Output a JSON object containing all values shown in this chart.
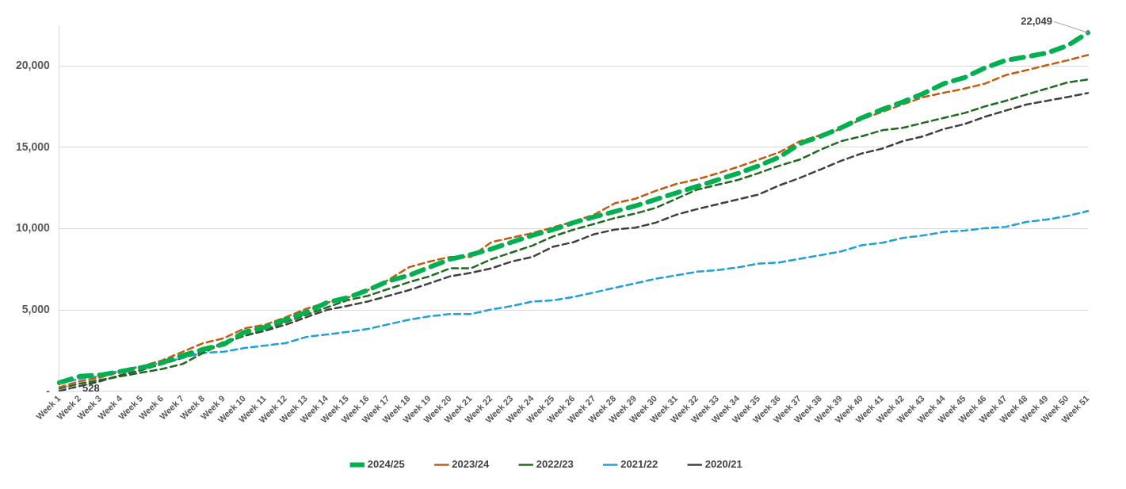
{
  "chart_data": {
    "type": "line",
    "categories": [
      "Week 1",
      "Week 2",
      "Week 3",
      "Week 4",
      "Week 5",
      "Week 6",
      "Week 7",
      "Week 8",
      "Week 9",
      "Week 10",
      "Week 11",
      "Week 12",
      "Week 13",
      "Week 14",
      "Week 15",
      "Week 16",
      "Week 17",
      "Week 18",
      "Week 19",
      "Week 20",
      "Week 21",
      "Week 22",
      "Week 23",
      "Week 24",
      "Week 25",
      "Week 26",
      "Week 27",
      "Week 28",
      "Week 29",
      "Week 30",
      "Week 31",
      "Week 32",
      "Week 33",
      "Week 34",
      "Week 35",
      "Week 36",
      "Week 37",
      "Week 38",
      "Week 39",
      "Week 40",
      "Week 41",
      "Week 42",
      "Week 43",
      "Week 44",
      "Week 45",
      "Week 46",
      "Week 47",
      "Week 48",
      "Week 49",
      "Week 50",
      "Week 51"
    ],
    "series": [
      {
        "name": "2024/25",
        "color": "#00b050",
        "values": [
          528,
          920,
          1000,
          1220,
          1450,
          1750,
          2200,
          2580,
          2890,
          3640,
          3940,
          4400,
          4860,
          5450,
          5750,
          6220,
          6780,
          7130,
          7630,
          8120,
          8400,
          8750,
          9170,
          9590,
          9940,
          10370,
          10720,
          11050,
          11400,
          11800,
          12200,
          12600,
          13000,
          13400,
          13870,
          14400,
          15230,
          15680,
          16200,
          16810,
          17330,
          17790,
          18310,
          18920,
          19290,
          19890,
          20350,
          20570,
          20800,
          21250,
          22049
        ]
      },
      {
        "name": "2023/24",
        "color": "#c55a11",
        "values": [
          240,
          620,
          850,
          1220,
          1530,
          1900,
          2430,
          2960,
          3260,
          3870,
          4090,
          4550,
          5070,
          5450,
          5750,
          6220,
          6850,
          7630,
          7980,
          8260,
          8260,
          9170,
          9450,
          9730,
          10080,
          10440,
          10860,
          11560,
          11840,
          12330,
          12750,
          13030,
          13400,
          13800,
          14250,
          14700,
          15380,
          15750,
          16130,
          16730,
          17180,
          17640,
          18090,
          18360,
          18610,
          18920,
          19440,
          19740,
          20050,
          20350,
          20680
        ]
      },
      {
        "name": "2022/23",
        "color": "#1e6b1e",
        "values": [
          170,
          470,
          700,
          920,
          1150,
          1370,
          1680,
          2360,
          2960,
          3410,
          3790,
          4250,
          4700,
          5150,
          5600,
          5870,
          6290,
          6710,
          7070,
          7560,
          7560,
          8120,
          8540,
          8960,
          9520,
          9940,
          10290,
          10650,
          10930,
          11280,
          11840,
          12400,
          12700,
          13000,
          13420,
          13870,
          14250,
          14850,
          15380,
          15680,
          16050,
          16200,
          16510,
          16810,
          17110,
          17520,
          17860,
          18240,
          18610,
          18990,
          19170
        ]
      },
      {
        "name": "2021/22",
        "color": "#1ea0dc",
        "values": [
          470,
          770,
          920,
          1300,
          1530,
          1750,
          2050,
          2360,
          2430,
          2660,
          2810,
          2960,
          3340,
          3490,
          3650,
          3830,
          4120,
          4400,
          4610,
          4750,
          4750,
          5030,
          5240,
          5520,
          5590,
          5800,
          6080,
          6360,
          6640,
          6920,
          7130,
          7350,
          7450,
          7620,
          7850,
          7920,
          8150,
          8370,
          8600,
          8980,
          9130,
          9430,
          9580,
          9800,
          9880,
          10030,
          10110,
          10410,
          10560,
          10780,
          11080
        ]
      },
      {
        "name": "2020/21",
        "color": "#404040",
        "values": [
          20,
          320,
          620,
          1000,
          1300,
          1680,
          2050,
          2430,
          3040,
          3410,
          3720,
          4090,
          4550,
          5000,
          5250,
          5520,
          5870,
          6220,
          6640,
          7070,
          7280,
          7560,
          7980,
          8260,
          8890,
          9170,
          9660,
          9940,
          10060,
          10370,
          10860,
          11200,
          11500,
          11800,
          12100,
          12660,
          13120,
          13640,
          14170,
          14620,
          14920,
          15380,
          15680,
          16130,
          16430,
          16880,
          17260,
          17630,
          17860,
          18090,
          18340
        ]
      }
    ],
    "ylim": [
      0,
      22500
    ],
    "yticks": [
      {
        "value": 0,
        "label": "-"
      },
      {
        "value": 5000,
        "label": "5,000"
      },
      {
        "value": 10000,
        "label": "10,000"
      },
      {
        "value": 15000,
        "label": "15,000"
      },
      {
        "value": 20000,
        "label": "20,000"
      }
    ],
    "annotations": [
      {
        "text": "528",
        "x": "Week 1",
        "y": 528
      },
      {
        "text": "22,049",
        "x": "Week 51",
        "y": 22049
      }
    ],
    "grid": "y",
    "legend": "bottom",
    "marker": "none",
    "line_style": "dashed"
  }
}
